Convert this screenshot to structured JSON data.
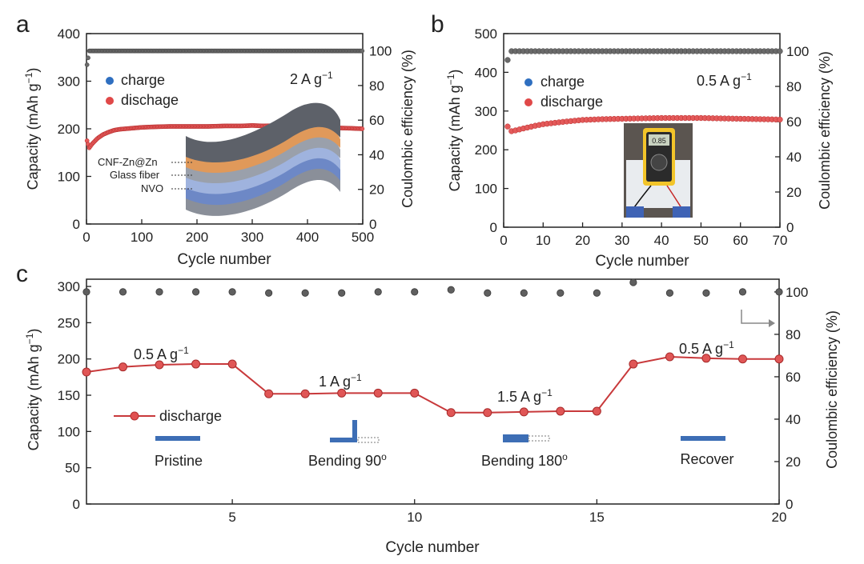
{
  "chart_data": [
    {
      "panel": "a",
      "type": "scatter",
      "panel_label": "a",
      "xlabel": "Cycle number",
      "ylabel": "Capacity (mAh g",
      "ylabel_sup": "−1",
      "ylabel_close": ")",
      "y2label": "Coulombic efficiency (%)",
      "xlim": [
        0,
        500
      ],
      "ylim": [
        0,
        400
      ],
      "y2lim": [
        0,
        110
      ],
      "xticks": [
        0,
        100,
        200,
        300,
        400,
        500
      ],
      "yticks": [
        0,
        100,
        200,
        300,
        400
      ],
      "y2ticks": [
        0,
        20,
        40,
        60,
        80,
        100
      ],
      "legend": [
        {
          "label": "charge",
          "color": "#2f6fc0"
        },
        {
          "label": "dischage",
          "color": "#e04848"
        }
      ],
      "rate_label": "2 A g",
      "rate_sup": "−1",
      "series": [
        {
          "name": "discharge",
          "color": "#e03a3a",
          "x": [
            1,
            5,
            10,
            20,
            30,
            40,
            50,
            60,
            80,
            100,
            120,
            150,
            180,
            200,
            220,
            250,
            280,
            300,
            320,
            350,
            380,
            400,
            420,
            450,
            480,
            500
          ],
          "values": [
            175,
            160,
            168,
            180,
            188,
            193,
            197,
            199,
            201,
            203,
            204,
            205,
            205,
            205,
            205,
            206,
            206,
            207,
            206,
            207,
            205,
            204,
            203,
            202,
            201,
            200
          ]
        },
        {
          "name": "coulombic efficiency",
          "axis": "y2",
          "color": "#555555",
          "x": [
            1,
            5,
            10,
            50,
            100,
            150,
            200,
            250,
            300,
            350,
            400,
            450,
            500
          ],
          "values": [
            92,
            100,
            100,
            100,
            100,
            100,
            100,
            100,
            100,
            100,
            100,
            100,
            100
          ]
        }
      ],
      "inset_labels": [
        "CNF-Zn@Zn",
        "Glass fiber",
        "NVO"
      ]
    },
    {
      "panel": "b",
      "type": "scatter",
      "panel_label": "b",
      "xlabel": "Cycle number",
      "ylabel": "Capacity (mAh g",
      "ylabel_sup": "−1",
      "ylabel_close": ")",
      "y2label": "Coulombic efficiency (%)",
      "xlim": [
        0,
        70
      ],
      "ylim": [
        0,
        500
      ],
      "y2lim": [
        0,
        110
      ],
      "xticks": [
        0,
        10,
        20,
        30,
        40,
        50,
        60,
        70
      ],
      "yticks": [
        0,
        100,
        200,
        300,
        400,
        500
      ],
      "y2ticks": [
        0,
        20,
        40,
        60,
        80,
        100
      ],
      "legend": [
        {
          "label": "charge",
          "color": "#2f6fc0"
        },
        {
          "label": "discharge",
          "color": "#e04848"
        }
      ],
      "rate_label": "0.5 A g",
      "rate_sup": "−1",
      "series": [
        {
          "name": "discharge",
          "color": "#e03a3a",
          "x": [
            1,
            2,
            3,
            5,
            8,
            10,
            15,
            20,
            25,
            30,
            35,
            40,
            45,
            50,
            55,
            60,
            65,
            70
          ],
          "values": [
            260,
            248,
            250,
            255,
            262,
            266,
            272,
            277,
            279,
            280,
            281,
            282,
            282,
            282,
            281,
            280,
            279,
            278
          ]
        },
        {
          "name": "coulombic efficiency",
          "axis": "y2",
          "color": "#555555",
          "x": [
            1,
            2,
            5,
            10,
            20,
            30,
            40,
            50,
            60,
            70
          ],
          "values": [
            95,
            100,
            100,
            100,
            100,
            100,
            100,
            100,
            100,
            100
          ]
        }
      ],
      "multimeter_reading": "0.85"
    },
    {
      "panel": "c",
      "type": "line",
      "panel_label": "c",
      "xlabel": "Cycle number",
      "ylabel": "Capacity (mAh g",
      "ylabel_sup": "−1",
      "ylabel_close": ")",
      "y2label": "Coulombic efficiency (%)",
      "xlim": [
        1,
        20
      ],
      "ylim": [
        0,
        310
      ],
      "y2lim": [
        0,
        106
      ],
      "xticks": [
        5,
        10,
        15,
        20
      ],
      "yticks": [
        0,
        50,
        100,
        150,
        200,
        250,
        300
      ],
      "y2ticks": [
        0,
        20,
        40,
        60,
        80,
        100
      ],
      "legend": [
        {
          "label": "discharge",
          "color": "#c8393b"
        }
      ],
      "x": [
        1,
        2,
        3,
        4,
        5,
        6,
        7,
        8,
        9,
        10,
        11,
        12,
        13,
        14,
        15,
        16,
        17,
        18,
        19,
        20
      ],
      "series": [
        {
          "name": "discharge",
          "color": "#c8393b",
          "values": [
            182,
            189,
            192,
            193,
            193,
            152,
            152,
            153,
            153,
            153,
            126,
            126,
            127,
            128,
            128,
            193,
            203,
            201,
            200,
            200
          ]
        },
        {
          "name": "coulombic efficiency",
          "axis": "y2",
          "color": "#555555",
          "values": [
            100,
            100,
            100,
            100,
            100,
            99.5,
            99.5,
            99.5,
            100,
            100,
            101,
            99.5,
            99.5,
            99.5,
            99.5,
            104.5,
            99.5,
            99.5,
            100,
            100
          ]
        }
      ],
      "annotations": [
        {
          "text": "0.5 A g",
          "sup": "−1"
        },
        {
          "text": "1 A g",
          "sup": "−1"
        },
        {
          "text": "1.5 A g",
          "sup": "−1"
        },
        {
          "text": "0.5 A g",
          "sup": "−1"
        }
      ],
      "states": [
        {
          "label": "Pristine"
        },
        {
          "label": "Bending  90",
          "sup": "o"
        },
        {
          "label": "Bending  180",
          "sup": "o"
        },
        {
          "label": "Recover"
        }
      ]
    }
  ]
}
